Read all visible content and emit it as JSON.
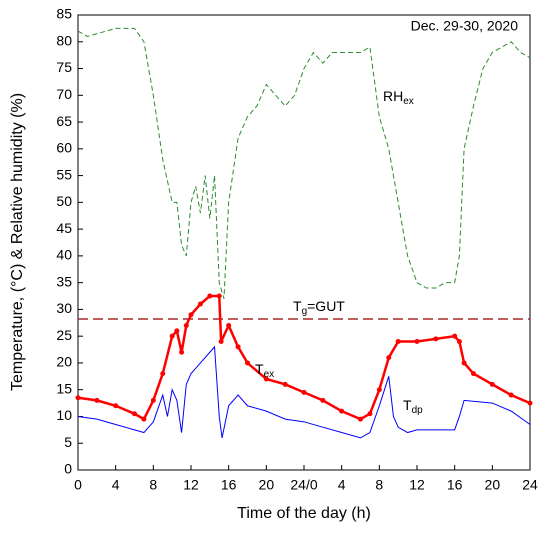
{
  "chart_data": {
    "type": "line",
    "xlabel": "Time of the day (h)",
    "ylabel": "Temperature, (°C) & Relative humidity (%)",
    "annotation": "Dec. 29-30, 2020",
    "xlim": [
      0,
      48
    ],
    "xticks": [
      0,
      4,
      8,
      12,
      16,
      20,
      {
        "value": 24,
        "label": "24/0"
      },
      {
        "value": 28,
        "label": "4"
      },
      {
        "value": 32,
        "label": "8"
      },
      {
        "value": 36,
        "label": "12"
      },
      {
        "value": 40,
        "label": "16"
      },
      {
        "value": 44,
        "label": "20"
      },
      {
        "value": 48,
        "label": "24"
      }
    ],
    "ylim": [
      0,
      85
    ],
    "yticks": [
      0,
      5,
      10,
      15,
      20,
      25,
      30,
      35,
      40,
      45,
      50,
      55,
      60,
      65,
      70,
      75,
      80,
      85
    ],
    "reference_line": {
      "value": 28.2,
      "label": "T",
      "label_sub": "g",
      "label_rest": "=GUT",
      "color": "#a52a2a"
    },
    "series": [
      {
        "name": "RH",
        "name_sub": "ex",
        "color": "#2e8b2e",
        "style": "dashed",
        "x": [
          0,
          1,
          2,
          3,
          4,
          5,
          6,
          7,
          8,
          9,
          10,
          10.5,
          11,
          11.5,
          12,
          12.5,
          13,
          13.5,
          14,
          14.5,
          15,
          15.5,
          16,
          17,
          18,
          19,
          20,
          21,
          22,
          23,
          24,
          25,
          26,
          27,
          28,
          29,
          30,
          31,
          32,
          33,
          34,
          35,
          36,
          37,
          38,
          39,
          40,
          40.5,
          41,
          42,
          43,
          44,
          45,
          46,
          47,
          48
        ],
        "values": [
          82,
          81,
          81.5,
          82,
          82.5,
          82.5,
          82.5,
          80,
          70,
          58,
          50,
          50,
          42,
          40,
          50,
          53,
          48,
          55,
          47,
          55,
          35,
          32,
          50,
          62,
          66,
          68,
          72,
          70,
          68,
          70,
          75,
          78,
          76,
          78,
          78,
          78,
          78,
          79,
          66,
          60,
          50,
          40,
          35,
          34,
          34,
          35,
          35,
          40,
          60,
          68,
          75,
          78,
          79,
          80,
          78,
          77
        ]
      },
      {
        "name": "T",
        "name_sub": "ex",
        "color": "#ff0000",
        "style": "markers",
        "x": [
          0,
          2,
          4,
          6,
          7,
          8,
          9,
          10,
          10.5,
          11,
          11.5,
          12,
          13,
          14,
          15,
          15.2,
          16,
          17,
          18,
          20,
          22,
          24,
          26,
          28,
          30,
          31,
          32,
          33,
          34,
          36,
          38,
          40,
          40.5,
          41,
          42,
          44,
          46,
          48
        ],
        "values": [
          13.5,
          13,
          12,
          10.5,
          9.5,
          13,
          18,
          25,
          26,
          22,
          27,
          29,
          31,
          32.5,
          32.5,
          24,
          27,
          23,
          20,
          17,
          16,
          14.5,
          13,
          11,
          9.5,
          10.5,
          15,
          21,
          24,
          24,
          24.5,
          25,
          24,
          20,
          18,
          16,
          14,
          12.5
        ]
      },
      {
        "name": "T",
        "name_sub": "dp",
        "color": "#0000ff",
        "style": "solid",
        "x": [
          0,
          2,
          4,
          6,
          7,
          8,
          9,
          9.5,
          10,
          10.5,
          11,
          11.5,
          12,
          13,
          14,
          14.5,
          15,
          15.3,
          16,
          17,
          18,
          20,
          22,
          24,
          26,
          28,
          30,
          31,
          32,
          33,
          33.5,
          34,
          35,
          36,
          38,
          40,
          40.5,
          41,
          44,
          46,
          48
        ],
        "values": [
          10,
          9.5,
          8.5,
          7.5,
          7,
          9,
          14,
          10,
          15,
          13,
          7,
          16,
          18,
          20,
          22,
          23,
          10,
          6,
          12,
          14,
          12,
          11,
          9.5,
          9,
          8,
          7,
          6,
          7,
          12,
          17.5,
          10,
          8,
          7,
          7.5,
          7.5,
          7.5,
          10,
          13,
          12.5,
          11,
          8.5
        ]
      }
    ]
  }
}
